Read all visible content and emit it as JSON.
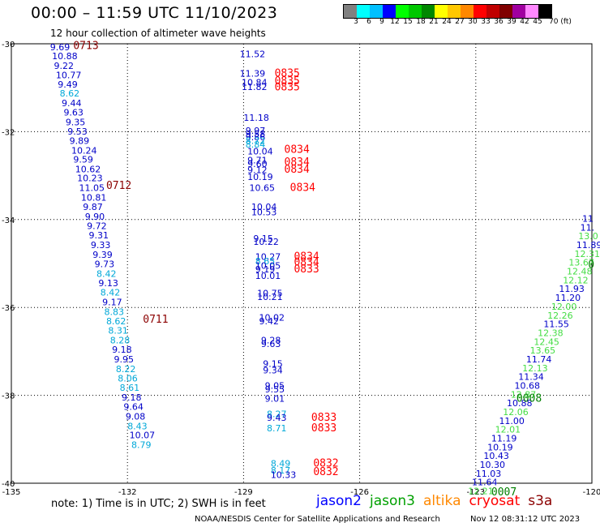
{
  "header": {
    "title": "00:00 – 11:59 UTC 11/10/2023",
    "subtitle": "12 hour collection of altimeter wave heights"
  },
  "colorbar": {
    "colors": [
      "#808080",
      "#00ffff",
      "#00c0ff",
      "#0000ff",
      "#00ff00",
      "#00c800",
      "#008800",
      "#ffff00",
      "#ffc800",
      "#ff8800",
      "#ff0000",
      "#c00000",
      "#800000",
      "#a000a0",
      "#ff88ff",
      "#000000"
    ],
    "labels": [
      "3",
      "6",
      "9",
      "12",
      "15",
      "18",
      "21",
      "24",
      "27",
      "30",
      "33",
      "36",
      "39",
      "42",
      "45",
      "70 (ft)"
    ]
  },
  "axes": {
    "lat_ticks": [
      "-30",
      "-32",
      "-34",
      "-36",
      "-38",
      "-40"
    ],
    "lon_ticks": [
      "-135",
      "-132",
      "-129",
      "-126",
      "-123",
      "-120"
    ],
    "lon_range": [
      -135,
      -120
    ],
    "lat_range": [
      -40,
      -30
    ]
  },
  "series_colors": {
    "jason2": "#0000ff",
    "jason3": "#00a000",
    "altika": "#ff8800",
    "cryosat": "#ff0000",
    "s3a": "#8b0000",
    "blue": "#0000c8",
    "cyan": "#00a8d8",
    "green": "#44dd44",
    "dgreen": "#008000",
    "red": "#ff0000",
    "dred": "#8b0000"
  },
  "tracks": [
    {
      "name": "track-1",
      "points": [
        {
          "lon": -134.0,
          "lat": -30.15,
          "v": "9.69",
          "c": "blue"
        },
        {
          "lon": -133.95,
          "lat": -30.35,
          "v": "10.88",
          "c": "blue"
        },
        {
          "lon": -133.9,
          "lat": -30.57,
          "v": "9.22",
          "c": "blue"
        },
        {
          "lon": -133.85,
          "lat": -30.78,
          "v": "10.77",
          "c": "blue"
        },
        {
          "lon": -133.8,
          "lat": -31.0,
          "v": "9.49",
          "c": "blue"
        },
        {
          "lon": -133.75,
          "lat": -31.2,
          "v": "8.62",
          "c": "cyan"
        },
        {
          "lon": -133.7,
          "lat": -31.42,
          "v": "9.44",
          "c": "blue"
        },
        {
          "lon": -133.65,
          "lat": -31.63,
          "v": "9.63",
          "c": "blue"
        },
        {
          "lon": -133.6,
          "lat": -31.85,
          "v": "9.35",
          "c": "blue"
        },
        {
          "lon": -133.55,
          "lat": -32.07,
          "v": "9.53",
          "c": "blue"
        },
        {
          "lon": -133.5,
          "lat": -32.28,
          "v": "9.89",
          "c": "blue"
        },
        {
          "lon": -133.45,
          "lat": -32.5,
          "v": "10.24",
          "c": "blue"
        },
        {
          "lon": -133.4,
          "lat": -32.7,
          "v": "9.59",
          "c": "blue"
        },
        {
          "lon": -133.35,
          "lat": -32.92,
          "v": "10.62",
          "c": "blue"
        },
        {
          "lon": -133.3,
          "lat": -33.13,
          "v": "10.23",
          "c": "blue"
        },
        {
          "lon": -133.25,
          "lat": -33.35,
          "v": "11.05",
          "c": "blue"
        },
        {
          "lon": -133.2,
          "lat": -33.57,
          "v": "10.81",
          "c": "blue"
        },
        {
          "lon": -133.15,
          "lat": -33.78,
          "v": "9.87",
          "c": "blue"
        },
        {
          "lon": -133.1,
          "lat": -34.0,
          "v": "9.90",
          "c": "blue"
        },
        {
          "lon": -133.05,
          "lat": -34.22,
          "v": "9.72",
          "c": "blue"
        },
        {
          "lon": -133.0,
          "lat": -34.43,
          "v": "9.31",
          "c": "blue"
        },
        {
          "lon": -132.95,
          "lat": -34.65,
          "v": "9.33",
          "c": "blue"
        },
        {
          "lon": -132.9,
          "lat": -34.87,
          "v": "9.39",
          "c": "blue"
        },
        {
          "lon": -132.85,
          "lat": -35.08,
          "v": "9.73",
          "c": "blue"
        },
        {
          "lon": -132.8,
          "lat": -35.3,
          "v": "8.42",
          "c": "cyan"
        },
        {
          "lon": -132.75,
          "lat": -35.52,
          "v": "9.13",
          "c": "blue"
        },
        {
          "lon": -132.7,
          "lat": -35.73,
          "v": "8.42",
          "c": "cyan"
        },
        {
          "lon": -132.65,
          "lat": -35.95,
          "v": "9.17",
          "c": "blue"
        },
        {
          "lon": -132.6,
          "lat": -36.17,
          "v": "8.83",
          "c": "cyan"
        },
        {
          "lon": -132.55,
          "lat": -36.38,
          "v": "8.62",
          "c": "cyan"
        },
        {
          "lon": -132.5,
          "lat": -36.6,
          "v": "8.31",
          "c": "cyan"
        },
        {
          "lon": -132.45,
          "lat": -36.82,
          "v": "8.28",
          "c": "cyan"
        },
        {
          "lon": -132.4,
          "lat": -37.03,
          "v": "9.18",
          "c": "blue"
        },
        {
          "lon": -132.35,
          "lat": -37.25,
          "v": "9.95",
          "c": "blue"
        },
        {
          "lon": -132.3,
          "lat": -37.47,
          "v": "8.22",
          "c": "cyan"
        },
        {
          "lon": -132.25,
          "lat": -37.68,
          "v": "8.06",
          "c": "cyan"
        },
        {
          "lon": -132.2,
          "lat": -37.9,
          "v": "8.61",
          "c": "cyan"
        },
        {
          "lon": -132.15,
          "lat": -38.12,
          "v": "9.18",
          "c": "blue"
        },
        {
          "lon": -132.1,
          "lat": -38.33,
          "v": "9.64",
          "c": "blue"
        },
        {
          "lon": -132.05,
          "lat": -38.55,
          "v": "9.08",
          "c": "blue"
        },
        {
          "lon": -132.0,
          "lat": -38.77,
          "v": "8.43",
          "c": "cyan"
        },
        {
          "lon": -131.95,
          "lat": -38.98,
          "v": "10.07",
          "c": "blue"
        },
        {
          "lon": -131.9,
          "lat": -39.2,
          "v": "8.79",
          "c": "cyan"
        }
      ]
    },
    {
      "name": "track-2",
      "points": [
        {
          "lon": -129.1,
          "lat": -30.3,
          "v": "11.52",
          "c": "blue"
        },
        {
          "lon": -129.1,
          "lat": -30.75,
          "v": "11.39",
          "c": "blue"
        },
        {
          "lon": -129.05,
          "lat": -30.95,
          "v": "10.84",
          "c": "blue"
        },
        {
          "lon": -129.05,
          "lat": -31.05,
          "v": "11.82",
          "c": "blue"
        },
        {
          "lon": -129.0,
          "lat": -31.75,
          "v": "11.18",
          "c": "blue"
        },
        {
          "lon": -128.95,
          "lat": -32.05,
          "v": "9.97",
          "c": "blue"
        },
        {
          "lon": -128.95,
          "lat": -32.12,
          "v": "9.58",
          "c": "blue"
        },
        {
          "lon": -128.95,
          "lat": -32.2,
          "v": "9.86",
          "c": "blue"
        },
        {
          "lon": -128.95,
          "lat": -32.28,
          "v": "8.72",
          "c": "cyan"
        },
        {
          "lon": -128.95,
          "lat": -32.36,
          "v": "8.84",
          "c": "cyan"
        },
        {
          "lon": -128.9,
          "lat": -32.52,
          "v": "10.04",
          "c": "blue"
        },
        {
          "lon": -128.9,
          "lat": -32.72,
          "v": "9.71",
          "c": "blue"
        },
        {
          "lon": -128.9,
          "lat": -32.8,
          "v": "9.60",
          "c": "blue"
        },
        {
          "lon": -128.9,
          "lat": -32.94,
          "v": "9.12",
          "c": "blue"
        },
        {
          "lon": -128.9,
          "lat": -33.1,
          "v": "10.19",
          "c": "blue"
        },
        {
          "lon": -128.85,
          "lat": -33.35,
          "v": "10.65",
          "c": "blue"
        },
        {
          "lon": -128.8,
          "lat": -33.78,
          "v": "10.04",
          "c": "blue"
        },
        {
          "lon": -128.8,
          "lat": -33.9,
          "v": "10.53",
          "c": "blue"
        },
        {
          "lon": -128.75,
          "lat": -34.5,
          "v": "9.15",
          "c": "blue"
        },
        {
          "lon": -128.75,
          "lat": -34.58,
          "v": "10.22",
          "c": "blue"
        },
        {
          "lon": -128.7,
          "lat": -34.92,
          "v": "10.27",
          "c": "blue"
        },
        {
          "lon": -128.7,
          "lat": -35.02,
          "v": "8.65",
          "c": "cyan"
        },
        {
          "lon": -128.7,
          "lat": -35.12,
          "v": "10.05",
          "c": "blue"
        },
        {
          "lon": -128.7,
          "lat": -35.2,
          "v": "9.19",
          "c": "blue"
        },
        {
          "lon": -128.7,
          "lat": -35.35,
          "v": "10.01",
          "c": "blue"
        },
        {
          "lon": -128.65,
          "lat": -35.75,
          "v": "10.75",
          "c": "blue"
        },
        {
          "lon": -128.65,
          "lat": -35.83,
          "v": "10.21",
          "c": "blue"
        },
        {
          "lon": -128.6,
          "lat": -36.3,
          "v": "10.02",
          "c": "blue"
        },
        {
          "lon": -128.6,
          "lat": -36.38,
          "v": "9.42",
          "c": "blue"
        },
        {
          "lon": -128.55,
          "lat": -36.82,
          "v": "9.28",
          "c": "blue"
        },
        {
          "lon": -128.55,
          "lat": -36.9,
          "v": "9.63",
          "c": "blue"
        },
        {
          "lon": -128.5,
          "lat": -37.35,
          "v": "9.15",
          "c": "blue"
        },
        {
          "lon": -128.5,
          "lat": -37.5,
          "v": "9.34",
          "c": "blue"
        },
        {
          "lon": -128.45,
          "lat": -37.85,
          "v": "9.05",
          "c": "blue"
        },
        {
          "lon": -128.45,
          "lat": -37.93,
          "v": "9.55",
          "c": "blue"
        },
        {
          "lon": -128.45,
          "lat": -38.15,
          "v": "9.01",
          "c": "blue"
        },
        {
          "lon": -128.4,
          "lat": -38.5,
          "v": "8.27",
          "c": "cyan"
        },
        {
          "lon": -128.4,
          "lat": -38.58,
          "v": "9.43",
          "c": "blue"
        },
        {
          "lon": -128.4,
          "lat": -38.82,
          "v": "8.71",
          "c": "cyan"
        },
        {
          "lon": -128.3,
          "lat": -39.62,
          "v": "8.49",
          "c": "cyan"
        },
        {
          "lon": -128.3,
          "lat": -39.78,
          "v": "8.17",
          "c": "cyan"
        },
        {
          "lon": -128.3,
          "lat": -39.88,
          "v": "10.33",
          "c": "blue"
        }
      ]
    },
    {
      "name": "track-3",
      "points": [
        {
          "lon": -120.25,
          "lat": -34.05,
          "v": "11",
          "c": "blue"
        },
        {
          "lon": -120.3,
          "lat": -34.25,
          "v": "11.",
          "c": "blue"
        },
        {
          "lon": -120.35,
          "lat": -34.45,
          "v": "13.0",
          "c": "green"
        },
        {
          "lon": -120.4,
          "lat": -34.65,
          "v": "11.89",
          "c": "blue"
        },
        {
          "lon": -120.45,
          "lat": -34.85,
          "v": "12.31",
          "c": "green"
        },
        {
          "lon": -120.6,
          "lat": -35.05,
          "v": "13.67",
          "c": "green"
        },
        {
          "lon": -120.65,
          "lat": -35.25,
          "v": "12.48",
          "c": "green"
        },
        {
          "lon": -120.75,
          "lat": -35.45,
          "v": "12.12",
          "c": "green"
        },
        {
          "lon": -120.85,
          "lat": -35.65,
          "v": "11.93",
          "c": "blue"
        },
        {
          "lon": -120.95,
          "lat": -35.85,
          "v": "11.20",
          "c": "blue"
        },
        {
          "lon": -121.05,
          "lat": -36.05,
          "v": "12.00",
          "c": "green"
        },
        {
          "lon": -121.15,
          "lat": -36.25,
          "v": "12.26",
          "c": "green"
        },
        {
          "lon": -121.25,
          "lat": -36.45,
          "v": "11.55",
          "c": "blue"
        },
        {
          "lon": -121.4,
          "lat": -36.65,
          "v": "12.38",
          "c": "green"
        },
        {
          "lon": -121.5,
          "lat": -36.85,
          "v": "12.45",
          "c": "green"
        },
        {
          "lon": -121.6,
          "lat": -37.05,
          "v": "13.65",
          "c": "green"
        },
        {
          "lon": -121.7,
          "lat": -37.25,
          "v": "11.74",
          "c": "blue"
        },
        {
          "lon": -121.8,
          "lat": -37.45,
          "v": "12.13",
          "c": "green"
        },
        {
          "lon": -121.9,
          "lat": -37.65,
          "v": "11.34",
          "c": "blue"
        },
        {
          "lon": -122.0,
          "lat": -37.85,
          "v": "10.68",
          "c": "blue"
        },
        {
          "lon": -122.1,
          "lat": -38.05,
          "v": "12.87",
          "c": "green"
        },
        {
          "lon": -122.2,
          "lat": -38.25,
          "v": "10.88",
          "c": "blue"
        },
        {
          "lon": -122.3,
          "lat": -38.45,
          "v": "12.06",
          "c": "green"
        },
        {
          "lon": -122.4,
          "lat": -38.65,
          "v": "11.00",
          "c": "blue"
        },
        {
          "lon": -122.5,
          "lat": -38.85,
          "v": "12.01",
          "c": "green"
        },
        {
          "lon": -122.6,
          "lat": -39.05,
          "v": "11.19",
          "c": "blue"
        },
        {
          "lon": -122.7,
          "lat": -39.25,
          "v": "10.19",
          "c": "blue"
        },
        {
          "lon": -122.8,
          "lat": -39.45,
          "v": "10.43",
          "c": "blue"
        },
        {
          "lon": -122.9,
          "lat": -39.65,
          "v": "10.30",
          "c": "blue"
        },
        {
          "lon": -123.0,
          "lat": -39.85,
          "v": "11.03",
          "c": "blue"
        },
        {
          "lon": -123.1,
          "lat": -40.05,
          "v": "11.64",
          "c": "blue"
        },
        {
          "lon": -123.2,
          "lat": -40.25,
          "v": "12.21",
          "c": "green"
        }
      ]
    }
  ],
  "time_labels": [
    {
      "lon": -133.4,
      "lat": -30.12,
      "t": "0713",
      "c": "dred"
    },
    {
      "lon": -132.55,
      "lat": -33.3,
      "t": "0712",
      "c": "dred"
    },
    {
      "lon": -131.6,
      "lat": -36.35,
      "t": "0711",
      "c": "dred"
    },
    {
      "lon": -128.2,
      "lat": -30.75,
      "t": "0835",
      "c": "red"
    },
    {
      "lon": -128.2,
      "lat": -30.92,
      "t": "0835",
      "c": "red"
    },
    {
      "lon": -128.2,
      "lat": -31.06,
      "t": "0835",
      "c": "red"
    },
    {
      "lon": -127.95,
      "lat": -32.48,
      "t": "0834",
      "c": "red"
    },
    {
      "lon": -127.95,
      "lat": -32.77,
      "t": "0834",
      "c": "red"
    },
    {
      "lon": -127.95,
      "lat": -32.93,
      "t": "0834",
      "c": "red"
    },
    {
      "lon": -127.8,
      "lat": -33.35,
      "t": "0834",
      "c": "red"
    },
    {
      "lon": -127.7,
      "lat": -34.92,
      "t": "0834",
      "c": "red"
    },
    {
      "lon": -127.7,
      "lat": -35.05,
      "t": "0834",
      "c": "red"
    },
    {
      "lon": -127.7,
      "lat": -35.2,
      "t": "0833",
      "c": "red"
    },
    {
      "lon": -127.25,
      "lat": -38.58,
      "t": "0833",
      "c": "red"
    },
    {
      "lon": -127.25,
      "lat": -38.82,
      "t": "0833",
      "c": "red"
    },
    {
      "lon": -127.2,
      "lat": -39.62,
      "t": "0832",
      "c": "red"
    },
    {
      "lon": -127.2,
      "lat": -39.82,
      "t": "0832",
      "c": "red"
    },
    {
      "lon": -121.95,
      "lat": -38.15,
      "t": "0008",
      "c": "dgreen"
    },
    {
      "lon": -122.6,
      "lat": -40.28,
      "t": "0007",
      "c": "dgreen"
    },
    {
      "lon": -120.1,
      "lat": -35.1,
      "t": "0",
      "c": "dgreen"
    }
  ],
  "note": "note:  1) Time is in UTC;  2) SWH is in feet",
  "legend": [
    {
      "label": "jason2",
      "key": "jason2"
    },
    {
      "label": "jason3",
      "key": "jason3"
    },
    {
      "label": "altika",
      "key": "altika"
    },
    {
      "label": "cryosat",
      "key": "cryosat"
    },
    {
      "label": "s3a",
      "key": "s3a"
    }
  ],
  "footer": {
    "left": "NOAA/NESDIS Center for Satellite Applications and Research",
    "right": "Nov 12 08:31:12 UTC 2023"
  }
}
